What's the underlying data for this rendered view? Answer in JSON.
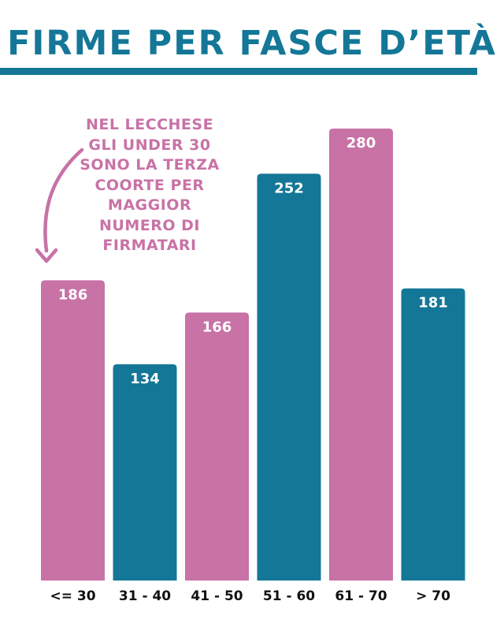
{
  "title": "FIRME PER FASCE D’ETÀ",
  "annotation": "NEL LECCHESE GLI UNDER 30 SONO LA TERZA COORTE PER MAGGIOR NUMERO DI FIRMATARI",
  "colors": {
    "teal": "#147797",
    "pink": "#C872A6",
    "text": "#111111",
    "label": "#ffffff"
  },
  "chart_data": {
    "type": "bar",
    "title": "FIRME PER FASCE D’ETÀ",
    "xlabel": "",
    "ylabel": "",
    "categories": [
      "<= 30",
      "31 - 40",
      "41 - 50",
      "51 - 60",
      "61 - 70",
      "> 70"
    ],
    "values": [
      186,
      134,
      166,
      252,
      280,
      181
    ],
    "bar_colors": [
      "#C872A6",
      "#147797",
      "#C872A6",
      "#147797",
      "#C872A6",
      "#147797"
    ],
    "ylim": [
      0,
      285
    ],
    "grid": false,
    "legend": "none"
  }
}
